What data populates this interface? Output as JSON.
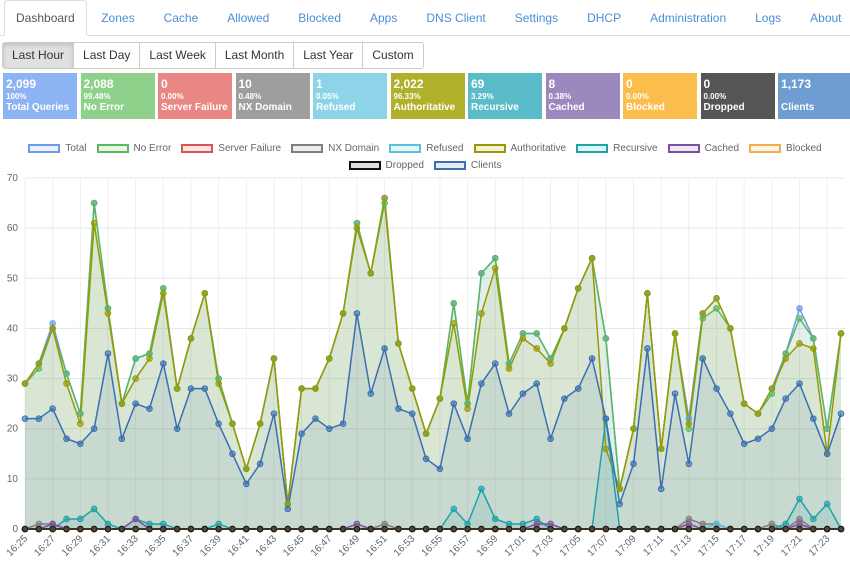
{
  "tabs": [
    {
      "label": "Dashboard",
      "active": true
    },
    {
      "label": "Zones"
    },
    {
      "label": "Cache"
    },
    {
      "label": "Allowed"
    },
    {
      "label": "Blocked"
    },
    {
      "label": "Apps"
    },
    {
      "label": "DNS Client"
    },
    {
      "label": "Settings"
    },
    {
      "label": "DHCP"
    },
    {
      "label": "Administration"
    },
    {
      "label": "Logs"
    },
    {
      "label": "About"
    }
  ],
  "ranges": [
    {
      "label": "Last Hour",
      "active": true
    },
    {
      "label": "Last Day"
    },
    {
      "label": "Last Week"
    },
    {
      "label": "Last Month"
    },
    {
      "label": "Last Year"
    },
    {
      "label": "Custom"
    }
  ],
  "cards": [
    {
      "value": "2,099",
      "percent": "100%",
      "label": "Total Queries",
      "color": "#8db3f2"
    },
    {
      "value": "2,088",
      "percent": "99.48%",
      "label": "No Error",
      "color": "#8fd18b"
    },
    {
      "value": "0",
      "percent": "0.00%",
      "label": "Server Failure",
      "color": "#e88783"
    },
    {
      "value": "10",
      "percent": "0.48%",
      "label": "NX Domain",
      "color": "#9e9e9e"
    },
    {
      "value": "1",
      "percent": "0.05%",
      "label": "Refused",
      "color": "#8ed4e8"
    },
    {
      "value": "2,022",
      "percent": "96.33%",
      "label": "Authoritative",
      "color": "#b0b02a"
    },
    {
      "value": "69",
      "percent": "3.29%",
      "label": "Recursive",
      "color": "#5bbcc9"
    },
    {
      "value": "8",
      "percent": "0.38%",
      "label": "Cached",
      "color": "#9b88bd"
    },
    {
      "value": "0",
      "percent": "0.00%",
      "label": "Blocked",
      "color": "#fbbd4c"
    },
    {
      "value": "0",
      "percent": "0.00%",
      "label": "Dropped",
      "color": "#555555"
    },
    {
      "value": "1,173",
      "percent": "",
      "label": "Clients",
      "color": "#6d9dd1"
    }
  ],
  "chart_data": {
    "type": "line",
    "fill": true,
    "grid": true,
    "ylim": [
      0,
      70
    ],
    "yticks": [
      0,
      10,
      20,
      30,
      40,
      50,
      60,
      70
    ],
    "categories": [
      "16:25",
      null,
      "16:27",
      null,
      "16:29",
      null,
      "16:31",
      null,
      "16:33",
      null,
      "16:35",
      null,
      "16:37",
      null,
      "16:39",
      null,
      "16:41",
      null,
      "16:43",
      null,
      "16:45",
      null,
      "16:47",
      null,
      "16:49",
      null,
      "16:51",
      null,
      "16:53",
      null,
      "16:55",
      null,
      "16:57",
      null,
      "16:59",
      null,
      "17:01",
      null,
      "17:03",
      null,
      "17:05",
      null,
      "17:07",
      null,
      "17:09",
      null,
      "17:11",
      null,
      "17:13",
      null,
      "17:15",
      null,
      "17:17",
      null,
      "17:19",
      null,
      "17:21",
      null,
      "17:23",
      null
    ],
    "series": [
      {
        "name": "Total",
        "color": "#6a9ce8",
        "values": [
          29,
          33,
          41,
          31,
          23,
          65,
          44,
          25,
          34,
          35,
          48,
          28,
          38,
          47,
          30,
          21,
          12,
          21,
          34,
          5,
          28,
          28,
          34,
          43,
          61,
          51,
          66,
          37,
          28,
          19,
          26,
          45,
          25,
          51,
          54,
          33,
          39,
          39,
          34,
          40,
          48,
          54,
          38,
          8,
          20,
          47,
          16,
          39,
          22,
          43,
          46,
          40,
          25,
          23,
          28,
          35,
          44,
          38,
          20,
          39
        ]
      },
      {
        "name": "No Error",
        "color": "#5cb85c",
        "values": [
          29,
          32,
          40,
          31,
          23,
          65,
          44,
          25,
          34,
          35,
          48,
          28,
          38,
          47,
          30,
          21,
          12,
          21,
          34,
          5,
          28,
          28,
          34,
          43,
          61,
          51,
          65,
          37,
          28,
          19,
          26,
          45,
          25,
          51,
          54,
          33,
          39,
          39,
          34,
          40,
          48,
          54,
          38,
          8,
          20,
          47,
          16,
          39,
          20,
          42,
          44,
          40,
          25,
          23,
          27,
          35,
          42,
          38,
          20,
          39
        ]
      },
      {
        "name": "Server Failure",
        "color": "#d9534f",
        "values": [
          0,
          0,
          0,
          0,
          0,
          0,
          0,
          0,
          0,
          0,
          0,
          0,
          0,
          0,
          0,
          0,
          0,
          0,
          0,
          0,
          0,
          0,
          0,
          0,
          0,
          0,
          0,
          0,
          0,
          0,
          0,
          0,
          0,
          0,
          0,
          0,
          0,
          0,
          0,
          0,
          0,
          0,
          0,
          0,
          0,
          0,
          0,
          0,
          0,
          0,
          0,
          0,
          0,
          0,
          0,
          0,
          0,
          0,
          0,
          0
        ]
      },
      {
        "name": "NX Domain",
        "color": "#7f7f7f",
        "values": [
          0,
          1,
          1,
          0,
          0,
          0,
          0,
          0,
          0,
          0,
          0,
          0,
          0,
          0,
          0,
          0,
          0,
          0,
          0,
          0,
          0,
          0,
          0,
          0,
          0,
          0,
          1,
          0,
          0,
          0,
          0,
          0,
          0,
          0,
          0,
          0,
          0,
          0,
          0,
          0,
          0,
          0,
          0,
          0,
          0,
          0,
          0,
          0,
          2,
          1,
          1,
          0,
          0,
          0,
          1,
          0,
          2,
          0,
          0,
          0
        ]
      },
      {
        "name": "Refused",
        "color": "#5bc0de",
        "values": [
          0,
          0,
          0,
          0,
          0,
          0,
          0,
          0,
          0,
          0,
          0,
          0,
          0,
          0,
          0,
          0,
          0,
          0,
          0,
          0,
          0,
          0,
          0,
          0,
          0,
          0,
          0,
          0,
          0,
          0,
          0,
          0,
          0,
          0,
          0,
          0,
          0,
          0,
          0,
          0,
          0,
          0,
          0,
          0,
          0,
          0,
          0,
          0,
          0,
          0,
          1,
          0,
          0,
          0,
          0,
          0,
          0,
          0,
          0,
          0
        ]
      },
      {
        "name": "Authoritative",
        "color": "#999900",
        "values": [
          29,
          33,
          40,
          29,
          21,
          61,
          43,
          25,
          30,
          34,
          47,
          28,
          38,
          47,
          29,
          21,
          12,
          21,
          34,
          5,
          28,
          28,
          34,
          43,
          60,
          51,
          66,
          37,
          28,
          19,
          26,
          41,
          24,
          43,
          52,
          32,
          38,
          36,
          33,
          40,
          48,
          54,
          16,
          8,
          20,
          47,
          16,
          39,
          21,
          43,
          46,
          40,
          25,
          23,
          28,
          34,
          37,
          36,
          15,
          39
        ]
      },
      {
        "name": "Recursive",
        "color": "#1fa2a8",
        "values": [
          0,
          0,
          0,
          2,
          2,
          4,
          1,
          0,
          2,
          1,
          1,
          0,
          0,
          0,
          1,
          0,
          0,
          0,
          0,
          0,
          0,
          0,
          0,
          0,
          0,
          0,
          0,
          0,
          0,
          0,
          0,
          4,
          1,
          8,
          2,
          1,
          1,
          2,
          0,
          0,
          0,
          0,
          22,
          0,
          0,
          0,
          0,
          0,
          0,
          0,
          0,
          0,
          0,
          0,
          0,
          1,
          6,
          2,
          5,
          0
        ]
      },
      {
        "name": "Cached",
        "color": "#7d4f9e",
        "values": [
          0,
          0,
          1,
          0,
          0,
          0,
          0,
          0,
          2,
          0,
          0,
          0,
          0,
          0,
          0,
          0,
          0,
          0,
          0,
          0,
          0,
          0,
          0,
          0,
          1,
          0,
          0,
          0,
          0,
          0,
          0,
          0,
          0,
          0,
          0,
          0,
          0,
          1,
          1,
          0,
          0,
          0,
          0,
          0,
          0,
          0,
          0,
          0,
          1,
          0,
          0,
          0,
          0,
          0,
          0,
          0,
          1,
          0,
          0,
          0
        ]
      },
      {
        "name": "Blocked",
        "color": "#f0ad4e",
        "values": [
          0,
          0,
          0,
          0,
          0,
          0,
          0,
          0,
          0,
          0,
          0,
          0,
          0,
          0,
          0,
          0,
          0,
          0,
          0,
          0,
          0,
          0,
          0,
          0,
          0,
          0,
          0,
          0,
          0,
          0,
          0,
          0,
          0,
          0,
          0,
          0,
          0,
          0,
          0,
          0,
          0,
          0,
          0,
          0,
          0,
          0,
          0,
          0,
          0,
          0,
          0,
          0,
          0,
          0,
          0,
          0,
          0,
          0,
          0,
          0
        ]
      },
      {
        "name": "Dropped",
        "color": "#111111",
        "values": [
          0,
          0,
          0,
          0,
          0,
          0,
          0,
          0,
          0,
          0,
          0,
          0,
          0,
          0,
          0,
          0,
          0,
          0,
          0,
          0,
          0,
          0,
          0,
          0,
          0,
          0,
          0,
          0,
          0,
          0,
          0,
          0,
          0,
          0,
          0,
          0,
          0,
          0,
          0,
          0,
          0,
          0,
          0,
          0,
          0,
          0,
          0,
          0,
          0,
          0,
          0,
          0,
          0,
          0,
          0,
          0,
          0,
          0,
          0,
          0
        ]
      },
      {
        "name": "Clients",
        "color": "#3a6fb0",
        "values": [
          22,
          22,
          24,
          18,
          17,
          20,
          35,
          18,
          25,
          24,
          33,
          20,
          28,
          28,
          21,
          15,
          9,
          13,
          23,
          4,
          19,
          22,
          20,
          21,
          43,
          27,
          36,
          24,
          23,
          14,
          12,
          25,
          18,
          29,
          33,
          23,
          27,
          29,
          18,
          26,
          28,
          34,
          22,
          5,
          13,
          36,
          8,
          27,
          13,
          34,
          28,
          23,
          17,
          18,
          20,
          26,
          29,
          22,
          15,
          23
        ]
      }
    ]
  }
}
